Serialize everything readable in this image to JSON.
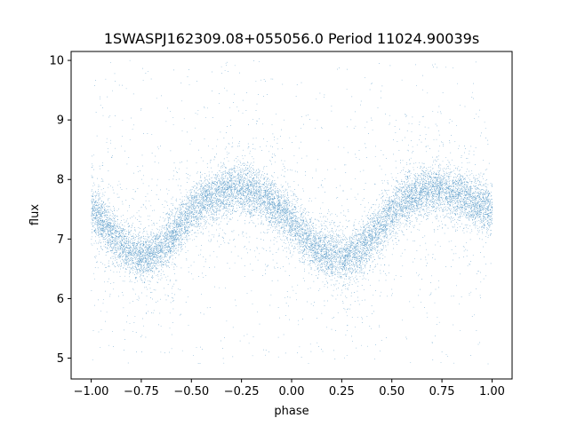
{
  "chart_data": {
    "type": "scatter",
    "title": "1SWASPJ162309.08+055056.0 Period 11024.90039s",
    "xlabel": "phase",
    "ylabel": "flux",
    "xlim": [
      -1.1,
      1.1
    ],
    "ylim": [
      4.65,
      10.15
    ],
    "xticks": [
      -1.0,
      -0.75,
      -0.5,
      -0.25,
      0.0,
      0.25,
      0.5,
      0.75,
      1.0
    ],
    "xtick_labels": [
      "−1.00",
      "−0.75",
      "−0.50",
      "−0.25",
      "0.00",
      "0.25",
      "0.50",
      "0.75",
      "1.00"
    ],
    "yticks": [
      5,
      6,
      7,
      8,
      9,
      10
    ],
    "ytick_labels": [
      "5",
      "6",
      "7",
      "8",
      "9",
      "10"
    ],
    "grid": false,
    "marker_color": "#1f77b4",
    "series": [
      {
        "x": [
          -1.0,
          -0.95,
          -0.9,
          -0.85,
          -0.8,
          -0.75,
          -0.7,
          -0.65,
          -0.6,
          -0.55,
          -0.5,
          -0.45,
          -0.4,
          -0.35,
          -0.3,
          -0.25,
          -0.2,
          -0.15,
          -0.1,
          -0.05,
          0.0,
          0.05,
          0.1,
          0.15,
          0.2,
          0.25,
          0.3,
          0.35,
          0.4,
          0.45,
          0.5,
          0.55,
          0.6,
          0.65,
          0.7,
          0.75,
          0.8,
          0.85,
          0.9,
          0.95,
          1.0
        ],
        "y": [
          7.5,
          7.3,
          7.1,
          6.9,
          6.8,
          6.7,
          6.75,
          6.85,
          7.05,
          7.25,
          7.45,
          7.6,
          7.7,
          7.78,
          7.82,
          7.83,
          7.78,
          7.7,
          7.6,
          7.45,
          7.3,
          7.1,
          6.9,
          6.8,
          6.72,
          6.7,
          6.75,
          6.85,
          7.05,
          7.25,
          7.45,
          7.6,
          7.7,
          7.78,
          7.82,
          7.83,
          7.78,
          7.7,
          7.6,
          7.55,
          7.5
        ],
        "spread": 0.2,
        "outlier_range": [
          4.9,
          10.0
        ],
        "points_in_band": 38000,
        "points_outliers": 2500
      }
    ]
  }
}
